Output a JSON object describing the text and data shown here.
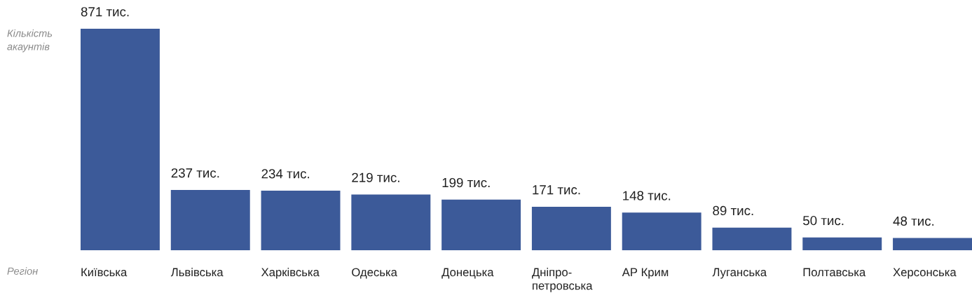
{
  "chart_data": {
    "type": "bar",
    "ylabel": "Кількість\nакаунтів",
    "xlabel": "Регіон",
    "categories": [
      "Київська",
      "Львівська",
      "Харківська",
      "Одеська",
      "Донецька",
      "Дніпро-\nпетровська",
      "АР Крим",
      "Луганська",
      "Полтавська",
      "Херсонська"
    ],
    "values": [
      871,
      237,
      234,
      219,
      199,
      171,
      148,
      89,
      50,
      48
    ],
    "value_labels": [
      "871 тис.",
      "237 тис.",
      "234 тис.",
      "219 тис.",
      "199 тис.",
      "171 тис.",
      "148 тис.",
      "89 тис.",
      "50 тис.",
      "48 тис."
    ],
    "color": "#3c5a99"
  }
}
